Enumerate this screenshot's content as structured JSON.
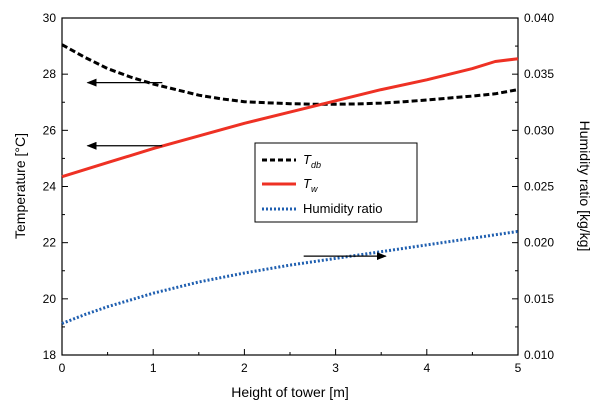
{
  "chart_data": {
    "type": "line",
    "title": "",
    "xlabel": "Height of tower [m]",
    "ylabel_left": "Temperature [°C]",
    "ylabel_right": "Humidity ratio [kg/kg]",
    "xlim": [
      0,
      5
    ],
    "ylim_left": [
      18,
      30
    ],
    "ylim_right": [
      0.01,
      0.04
    ],
    "x_ticks": [
      "0",
      "1",
      "2",
      "3",
      "4",
      "5"
    ],
    "y_left_ticks": [
      "18",
      "20",
      "22",
      "24",
      "26",
      "28",
      "30"
    ],
    "y_right_ticks": [
      "0.010",
      "0.015",
      "0.020",
      "0.025",
      "0.030",
      "0.035",
      "0.040"
    ],
    "grid": false,
    "legend_position": "center",
    "series": [
      {
        "id": "tdb",
        "name_main": "T",
        "name_sub": "db",
        "axis": "left",
        "color": "#000000",
        "style": "dashed",
        "x": [
          0,
          0.25,
          0.5,
          0.75,
          1.0,
          1.25,
          1.5,
          1.75,
          2.0,
          2.25,
          2.5,
          2.75,
          3.0,
          3.25,
          3.5,
          3.75,
          4.0,
          4.25,
          4.5,
          4.75,
          5.0
        ],
        "y": [
          29.05,
          28.6,
          28.2,
          27.9,
          27.65,
          27.45,
          27.25,
          27.12,
          27.02,
          26.98,
          26.95,
          26.93,
          26.93,
          26.94,
          26.97,
          27.02,
          27.08,
          27.15,
          27.22,
          27.3,
          27.45
        ]
      },
      {
        "id": "tw",
        "name_main": "T",
        "name_sub": "w",
        "axis": "left",
        "color": "#ee3124",
        "style": "solid",
        "x": [
          0,
          0.5,
          1.0,
          1.5,
          2.0,
          2.5,
          3.0,
          3.5,
          4.0,
          4.5,
          4.75,
          5.0
        ],
        "y": [
          24.35,
          24.85,
          25.35,
          25.8,
          26.25,
          26.65,
          27.05,
          27.45,
          27.8,
          28.2,
          28.45,
          28.55
        ]
      },
      {
        "id": "hr",
        "name_main": "Humidity ratio",
        "name_sub": "",
        "axis": "right",
        "color": "#1f5fb0",
        "style": "dotted",
        "x": [
          0,
          0.25,
          0.5,
          0.75,
          1.0,
          1.5,
          2.0,
          2.5,
          3.0,
          3.5,
          4.0,
          4.5,
          5.0
        ],
        "y": [
          0.0128,
          0.0136,
          0.0143,
          0.0149,
          0.0155,
          0.0165,
          0.0173,
          0.018,
          0.0186,
          0.0192,
          0.0198,
          0.0204,
          0.021
        ]
      }
    ],
    "annotation_arrows": [
      {
        "id": "tdb-arrow",
        "direction": "left",
        "axis": "left",
        "x_from": 1.1,
        "x_to": 0.28,
        "y": 27.7
      },
      {
        "id": "tw-arrow",
        "direction": "left",
        "axis": "left",
        "x_from": 1.1,
        "x_to": 0.28,
        "y": 25.45
      },
      {
        "id": "hr-arrow",
        "direction": "right",
        "axis": "right",
        "x_from": 2.65,
        "x_to": 3.55,
        "y": 0.0188
      }
    ]
  }
}
